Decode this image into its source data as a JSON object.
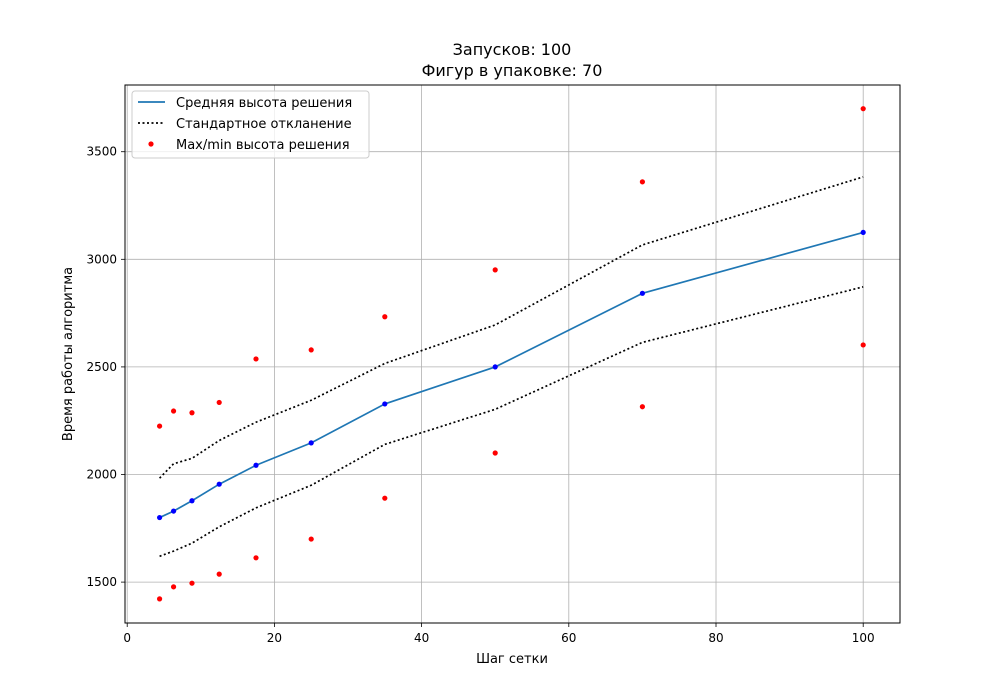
{
  "chart_data": {
    "type": "line",
    "title_lines": [
      "Запусков: 100",
      "Фигур в упаковке: 70"
    ],
    "xlabel": "Шаг сетки",
    "ylabel": "Время работы алгоритма",
    "xlim": [
      -0.3,
      105.0
    ],
    "ylim": [
      1310,
      3810
    ],
    "xticks": [
      0,
      20,
      40,
      60,
      80,
      100
    ],
    "yticks": [
      1500,
      2000,
      2500,
      3000,
      3500
    ],
    "grid": true,
    "legend_position": "top-left",
    "x": [
      4.4,
      6.3,
      8.8,
      12.5,
      17.5,
      25,
      35,
      50,
      70,
      100
    ],
    "series": [
      {
        "name": "Средняя высота решения",
        "style": "line-with-markers",
        "color": "#1f77b4",
        "marker_color": "#0000ff",
        "values": [
          1800,
          1830,
          1878,
          1955,
          2043,
          2147,
          2328,
          2500,
          2842,
          3125
        ]
      },
      {
        "name": "Стандартное откланение",
        "style": "dotted",
        "color": "#000000",
        "upper": [
          1983,
          2050,
          2075,
          2158,
          2243,
          2345,
          2516,
          2695,
          3067,
          3383
        ],
        "lower": [
          1620,
          1644,
          1681,
          1757,
          1845,
          1950,
          2140,
          2303,
          2614,
          2872
        ]
      },
      {
        "name": "Max/min высота решения",
        "style": "points",
        "color": "#ff0000",
        "max": [
          2225,
          2295,
          2287,
          2335,
          2537,
          2579,
          2733,
          2951,
          3360,
          3700
        ],
        "min": [
          1422,
          1478,
          1495,
          1537,
          1613,
          1700,
          1890,
          2100,
          2315,
          2602
        ]
      }
    ]
  }
}
